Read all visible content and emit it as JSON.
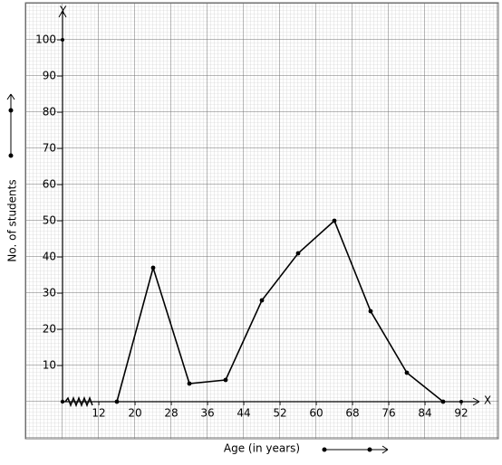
{
  "chart_data": {
    "type": "line",
    "x_label": "Age (in years)",
    "y_label": "No. of students",
    "x_axis_name": "X",
    "y_axis_name": "Y",
    "x": [
      16,
      24,
      32,
      40,
      48,
      56,
      64,
      72,
      80,
      88
    ],
    "series": [
      {
        "color": "#000000",
        "values": [
          0,
          37,
          5,
          6,
          28,
          41,
          50,
          25,
          8,
          0
        ]
      }
    ],
    "xlim": [
      4,
      96
    ],
    "ylim": [
      0,
      108
    ],
    "xticks": [
      12,
      20,
      28,
      36,
      44,
      52,
      60,
      68,
      76,
      84,
      92
    ],
    "yticks": [
      10,
      20,
      30,
      40,
      50,
      60,
      70,
      80,
      90,
      100
    ],
    "grid": true
  }
}
